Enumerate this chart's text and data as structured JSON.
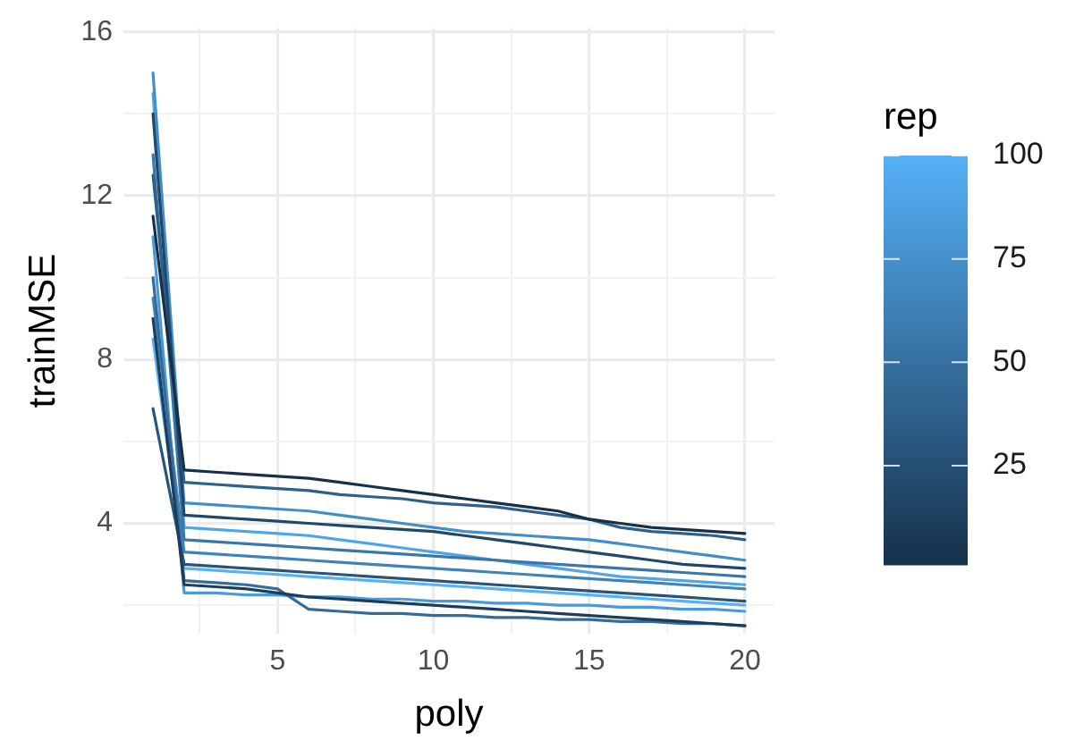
{
  "chart_data": {
    "type": "line",
    "xlabel": "poly",
    "ylabel": "trainMSE",
    "clabel": "rep",
    "clim": [
      1,
      100
    ],
    "cticks": [
      25,
      50,
      75,
      100
    ],
    "x": [
      1,
      2,
      3,
      4,
      5,
      6,
      7,
      8,
      9,
      10,
      11,
      12,
      13,
      14,
      15,
      16,
      17,
      18,
      19,
      20
    ],
    "xlim": [
      0.05,
      20.95
    ],
    "xticks": [
      {
        "value": 2.5,
        "label": null
      },
      5,
      {
        "value": 7.5,
        "label": null
      },
      10,
      {
        "value": 12.5,
        "label": null
      },
      15,
      {
        "value": 17.5,
        "label": null
      },
      20
    ],
    "ylim": [
      1.3,
      16.1
    ],
    "yticks": [
      {
        "value": 2,
        "label": null
      },
      4,
      {
        "value": 6,
        "label": null
      },
      8,
      {
        "value": 10,
        "label": null
      },
      12,
      {
        "value": 14,
        "label": null
      },
      16
    ],
    "grid": true,
    "legend": false,
    "marker": "none",
    "line_style": "solid",
    "series": [
      {
        "color": "#16304a",
        "values": [
          11.5,
          5.3,
          5.25,
          5.2,
          5.15,
          5.1,
          5.0,
          4.9,
          4.8,
          4.7,
          4.6,
          4.5,
          4.4,
          4.3,
          4.1,
          4.0,
          3.9,
          3.85,
          3.8,
          3.75
        ]
      },
      {
        "color": "#1c3d5b",
        "values": [
          9.0,
          2.5,
          2.45,
          2.4,
          2.3,
          2.2,
          2.15,
          2.1,
          2.05,
          2.0,
          1.95,
          1.9,
          1.85,
          1.8,
          1.75,
          1.7,
          1.65,
          1.6,
          1.55,
          1.5
        ]
      },
      {
        "color": "#214769",
        "values": [
          14.0,
          4.2,
          4.15,
          4.1,
          4.05,
          4.0,
          3.95,
          3.9,
          3.85,
          3.8,
          3.7,
          3.6,
          3.5,
          3.4,
          3.3,
          3.2,
          3.1,
          3.0,
          2.95,
          2.9
        ]
      },
      {
        "color": "#27547a",
        "values": [
          6.8,
          3.0,
          2.95,
          2.9,
          2.85,
          2.8,
          2.75,
          2.7,
          2.65,
          2.6,
          2.55,
          2.5,
          2.45,
          2.4,
          2.35,
          2.3,
          2.25,
          2.2,
          2.15,
          2.1
        ]
      },
      {
        "color": "#2d608a",
        "values": [
          12.5,
          5.0,
          4.95,
          4.9,
          4.85,
          4.8,
          4.7,
          4.65,
          4.6,
          4.5,
          4.45,
          4.4,
          4.3,
          4.2,
          4.1,
          3.9,
          3.8,
          3.75,
          3.7,
          3.6
        ]
      },
      {
        "color": "#336b99",
        "values": [
          10.0,
          2.6,
          2.55,
          2.5,
          2.4,
          1.9,
          1.85,
          1.8,
          1.8,
          1.75,
          1.75,
          1.7,
          1.7,
          1.65,
          1.65,
          1.6,
          1.6,
          1.55,
          1.55,
          1.5
        ]
      },
      {
        "color": "#3977a9",
        "values": [
          13.0,
          3.6,
          3.55,
          3.5,
          3.45,
          3.4,
          3.35,
          3.3,
          3.25,
          3.2,
          3.15,
          3.1,
          3.05,
          3.0,
          2.95,
          2.9,
          2.85,
          2.8,
          2.75,
          2.7
        ]
      },
      {
        "color": "#3f83b9",
        "values": [
          9.5,
          3.3,
          3.25,
          3.2,
          3.15,
          3.1,
          3.05,
          3.0,
          2.95,
          2.9,
          2.85,
          2.8,
          2.75,
          2.7,
          2.65,
          2.6,
          2.55,
          2.5,
          2.45,
          2.4
        ]
      },
      {
        "color": "#448ec8",
        "values": [
          15.0,
          4.5,
          4.45,
          4.4,
          4.35,
          4.3,
          4.2,
          4.1,
          4.0,
          3.9,
          3.8,
          3.75,
          3.7,
          3.65,
          3.6,
          3.5,
          3.4,
          3.3,
          3.2,
          3.1
        ]
      },
      {
        "color": "#4a9ad8",
        "values": [
          11.0,
          2.3,
          2.3,
          2.25,
          2.25,
          2.2,
          2.2,
          2.15,
          2.15,
          2.1,
          2.1,
          2.05,
          2.05,
          2.0,
          2.0,
          1.95,
          1.95,
          1.9,
          1.9,
          1.85
        ]
      },
      {
        "color": "#50a5e7",
        "values": [
          14.5,
          3.9,
          3.85,
          3.8,
          3.75,
          3.7,
          3.6,
          3.5,
          3.4,
          3.3,
          3.2,
          3.1,
          3.0,
          2.9,
          2.8,
          2.7,
          2.65,
          2.6,
          2.55,
          2.5
        ]
      },
      {
        "color": "#56b1f7",
        "values": [
          8.5,
          2.9,
          2.85,
          2.8,
          2.75,
          2.7,
          2.65,
          2.6,
          2.55,
          2.5,
          2.45,
          2.4,
          2.35,
          2.3,
          2.25,
          2.2,
          2.15,
          2.1,
          2.05,
          2.0
        ]
      }
    ]
  }
}
